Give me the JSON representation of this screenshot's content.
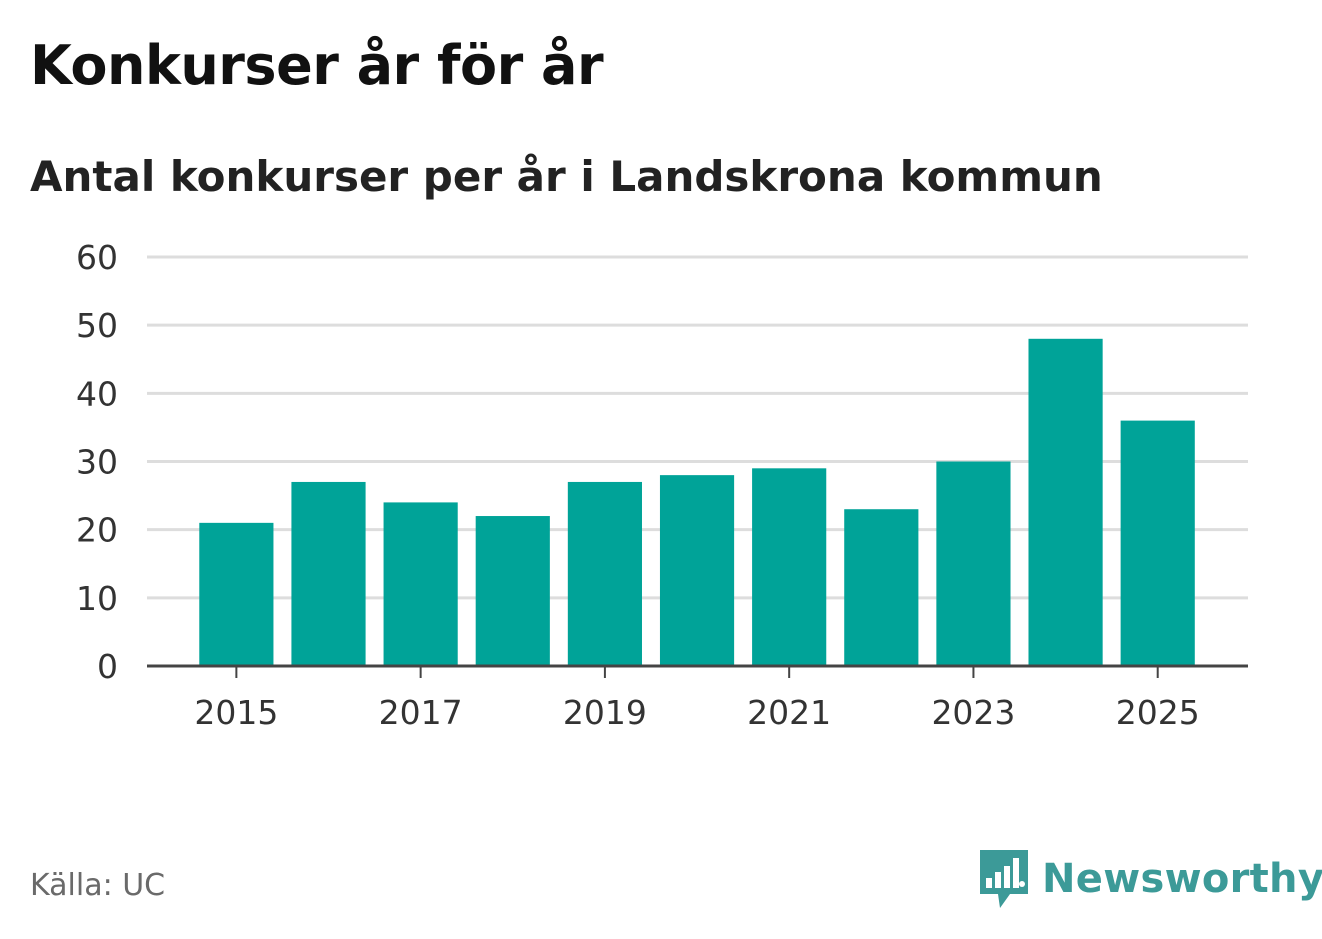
{
  "title": "Konkurser år för år",
  "subtitle": "Antal konkurser per år i Landskrona kommun",
  "source": "Källa: UC",
  "brand": {
    "name": "Newsworthy",
    "icon": "newsworthy-logo-icon",
    "color": "#3c9a98"
  },
  "colors": {
    "bar": "#00a398",
    "grid": "#dddddd",
    "axis": "#444444",
    "tick_text": "#333333"
  },
  "chart_data": {
    "type": "bar",
    "title": "Konkurser år för år",
    "subtitle": "Antal konkurser per år i Landskrona kommun",
    "xlabel": "",
    "ylabel": "",
    "categories": [
      2015,
      2016,
      2017,
      2018,
      2019,
      2020,
      2021,
      2022,
      2023,
      2024,
      2025
    ],
    "values": [
      21,
      27,
      24,
      22,
      27,
      28,
      29,
      23,
      30,
      48,
      36
    ],
    "x_tick_labels": [
      "2015",
      "2017",
      "2019",
      "2021",
      "2023",
      "2025"
    ],
    "y_ticks": [
      0,
      10,
      20,
      30,
      40,
      50,
      60
    ],
    "ylim": [
      0,
      60
    ],
    "grid": true,
    "legend": "none"
  }
}
